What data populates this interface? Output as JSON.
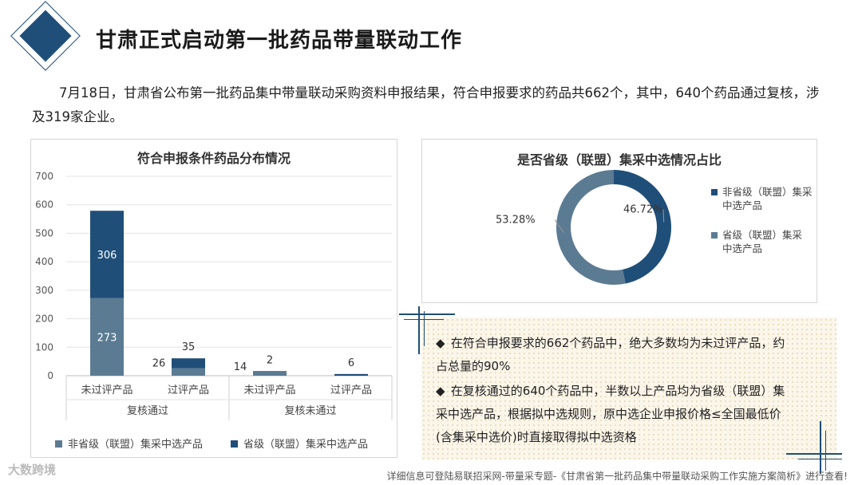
{
  "header": {
    "title": "甘肃正式启动第一批药品带量联动工作",
    "intro": "7月18日，甘肃省公布第一批药品集中带量联动采购资料申报结果，符合申报要求的药品共662个，其中，640个药品通过复核，涉及319家企业。"
  },
  "chart_data": [
    {
      "type": "bar",
      "stacked": true,
      "title": "符合申报条件药品分布情况",
      "categories": [
        "未过评产品",
        "过评产品",
        "未过评产品",
        "过评产品"
      ],
      "groups": [
        {
          "label": "复核通过",
          "categories": [
            0,
            1
          ]
        },
        {
          "label": "复核未通过",
          "categories": [
            2,
            3
          ]
        }
      ],
      "series": [
        {
          "name": "非省级（联盟）集采中选产品",
          "values": [
            273,
            26,
            14,
            0
          ],
          "labels": [
            "273",
            "26",
            "14",
            ""
          ],
          "color": "#5b7b93"
        },
        {
          "name": "省级（联盟）集采中选产品",
          "values": [
            306,
            35,
            2,
            6
          ],
          "labels": [
            "306",
            "35",
            "2",
            "6"
          ],
          "color": "#1f4e79"
        }
      ],
      "yticks": [
        "0",
        "100",
        "200",
        "300",
        "400",
        "500",
        "600",
        "700"
      ],
      "ylim": [
        0,
        700
      ],
      "legend": "bottom"
    },
    {
      "type": "pie",
      "donut": true,
      "title": "是否省级（联盟）集采中选情况占比",
      "slices": [
        {
          "name": "非省级（联盟）集采中选产品",
          "value": 46.72,
          "label": "46.72%",
          "color": "#1f4e79"
        },
        {
          "name": "省级（联盟）集采中选产品",
          "value": 53.28,
          "label": "53.28%",
          "color": "#5b7b93"
        }
      ],
      "legend": "right"
    }
  ],
  "notes": [
    "在符合申报要求的662个药品中，绝大多数均为未过评产品，约占总量的90%",
    "在复核通过的640个药品中，半数以上产品均为省级（联盟）集采中选产品，根据拟中选规则，原中选企业申报价格≤全国最低价 (含集采中选价)时直接取得拟中选资格"
  ],
  "bullet_symbol": "◆",
  "footer": "详细信息可登陆易联招采网-带量采专题-《甘肃省第一批药品集中带量联动采购工作实施方案简析》进行查看!",
  "logo_text": "大数跨境"
}
